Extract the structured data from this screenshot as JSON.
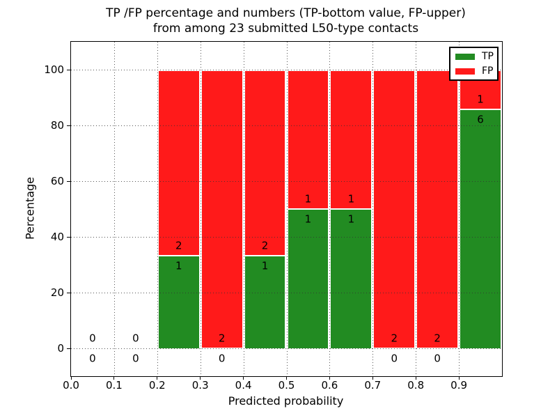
{
  "figure": {
    "title_line1": "TP /FP percentage and numbers (TP-bottom value, FP-upper)",
    "title_line2": "from among 23 submitted L50-type contacts"
  },
  "x_axis": {
    "label": "Predicted probability",
    "tick_labels": [
      "0.0",
      "0.1",
      "0.2",
      "0.3",
      "0.4",
      "0.5",
      "0.6",
      "0.7",
      "0.8",
      "0.9"
    ],
    "min": 0.0,
    "max": 1.0
  },
  "y_axis": {
    "label": "Percentage",
    "tick_labels": [
      "0",
      "20",
      "40",
      "60",
      "80",
      "100"
    ],
    "tick_values": [
      0,
      20,
      40,
      60,
      80,
      100
    ],
    "min": -10,
    "max": 110
  },
  "legend": {
    "position": "upper right",
    "items": [
      {
        "label": "TP",
        "color": "#228b22"
      },
      {
        "label": "FP",
        "color": "#ff1a1a"
      }
    ]
  },
  "colors": {
    "tp": "#228b22",
    "fp": "#ff1a1a",
    "bar_edge": "#ffffff",
    "grid": "#333333",
    "spine": "#000000",
    "text": "#000000",
    "background": "#ffffff"
  },
  "chart_data": {
    "type": "bar",
    "stacked": true,
    "normalized_to_percent": true,
    "grid": "dotted",
    "total_contacts": 23,
    "bin_width": 0.1,
    "label_rule": "TP count below TP/FP boundary, FP count above boundary",
    "bins": [
      {
        "x_start": 0.0,
        "x_end": 0.1,
        "tp": 0,
        "fp": 0,
        "tp_pct": 0,
        "fp_pct": 0
      },
      {
        "x_start": 0.1,
        "x_end": 0.2,
        "tp": 0,
        "fp": 0,
        "tp_pct": 0,
        "fp_pct": 0
      },
      {
        "x_start": 0.2,
        "x_end": 0.3,
        "tp": 1,
        "fp": 2,
        "tp_pct": 33.3,
        "fp_pct": 66.7
      },
      {
        "x_start": 0.3,
        "x_end": 0.4,
        "tp": 0,
        "fp": 2,
        "tp_pct": 0,
        "fp_pct": 100
      },
      {
        "x_start": 0.4,
        "x_end": 0.5,
        "tp": 1,
        "fp": 2,
        "tp_pct": 33.3,
        "fp_pct": 66.7
      },
      {
        "x_start": 0.5,
        "x_end": 0.6,
        "tp": 1,
        "fp": 1,
        "tp_pct": 50,
        "fp_pct": 50
      },
      {
        "x_start": 0.6,
        "x_end": 0.7,
        "tp": 1,
        "fp": 1,
        "tp_pct": 50,
        "fp_pct": 50
      },
      {
        "x_start": 0.7,
        "x_end": 0.8,
        "tp": 0,
        "fp": 2,
        "tp_pct": 0,
        "fp_pct": 100
      },
      {
        "x_start": 0.8,
        "x_end": 0.9,
        "tp": 0,
        "fp": 2,
        "tp_pct": 0,
        "fp_pct": 100
      },
      {
        "x_start": 0.9,
        "x_end": 1.0,
        "tp": 6,
        "fp": 1,
        "tp_pct": 85.7,
        "fp_pct": 14.3
      }
    ]
  }
}
